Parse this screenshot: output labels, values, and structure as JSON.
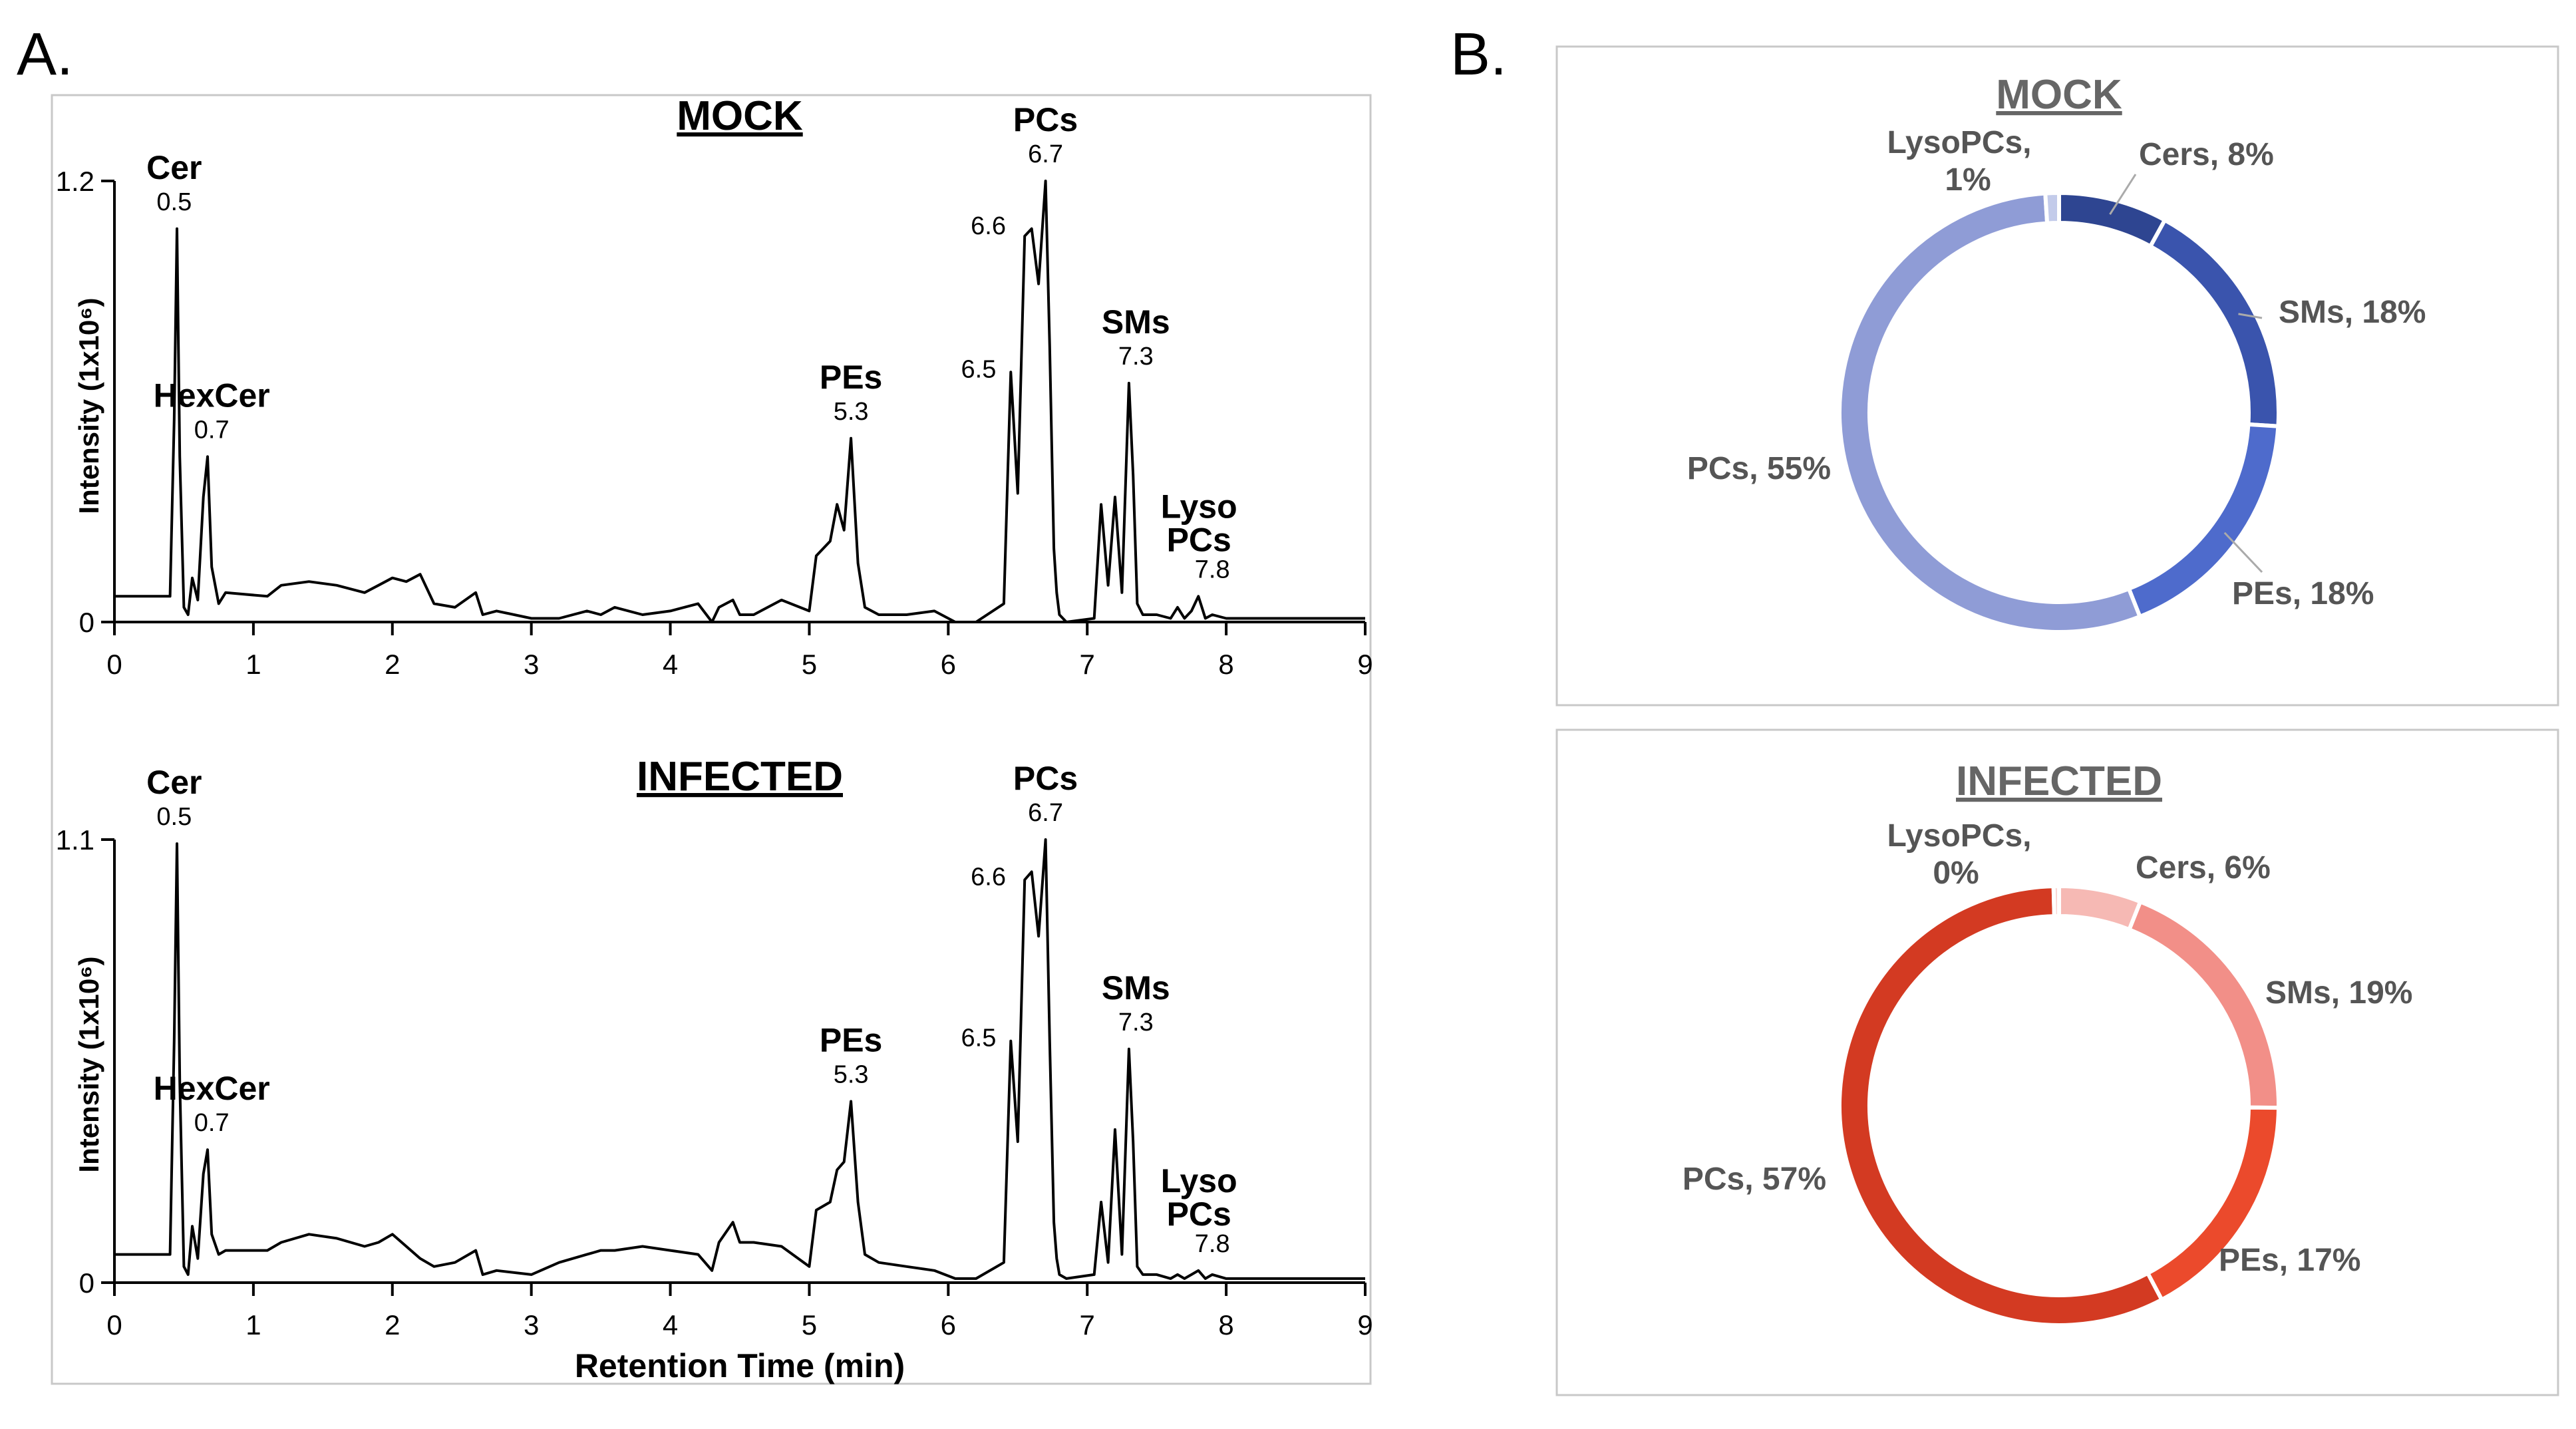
{
  "panel_labels": {
    "a": "A.",
    "b": "B."
  },
  "chart_data": [
    {
      "id": "mock-chromatogram",
      "type": "line",
      "title": "MOCK",
      "xlabel": "",
      "ylabel": "Intensity (1x10⁶)",
      "xlim": [
        0,
        9
      ],
      "ylim": [
        0,
        1.2
      ],
      "xticks": [
        "0",
        "1",
        "2",
        "3",
        "4",
        "5",
        "6",
        "7",
        "8",
        "9"
      ],
      "yticks": [
        {
          "value": 0,
          "label": "0"
        },
        {
          "value": 1.2,
          "label": "1.2"
        }
      ],
      "x": [
        0,
        0.4,
        0.43,
        0.45,
        0.47,
        0.5,
        0.53,
        0.56,
        0.6,
        0.64,
        0.67,
        0.7,
        0.75,
        0.8,
        1.1,
        1.2,
        1.4,
        1.6,
        1.8,
        1.9,
        2.0,
        2.1,
        2.2,
        2.3,
        2.45,
        2.6,
        2.65,
        2.75,
        3.0,
        3.2,
        3.4,
        3.5,
        3.6,
        3.8,
        4.0,
        4.2,
        4.3,
        4.35,
        4.45,
        4.5,
        4.6,
        4.8,
        5.0,
        5.05,
        5.15,
        5.2,
        5.25,
        5.3,
        5.35,
        5.4,
        5.5,
        5.7,
        5.9,
        6.05,
        6.2,
        6.4,
        6.45,
        6.5,
        6.55,
        6.6,
        6.65,
        6.7,
        6.73,
        6.76,
        6.78,
        6.8,
        6.85,
        7.05,
        7.1,
        7.15,
        7.2,
        7.25,
        7.3,
        7.33,
        7.36,
        7.4,
        7.5,
        7.6,
        7.65,
        7.7,
        7.75,
        7.8,
        7.85,
        7.9,
        8.0,
        8.5,
        9.0
      ],
      "y": [
        0.07,
        0.07,
        0.55,
        1.07,
        0.45,
        0.04,
        0.02,
        0.12,
        0.06,
        0.34,
        0.45,
        0.15,
        0.05,
        0.08,
        0.07,
        0.1,
        0.11,
        0.1,
        0.08,
        0.1,
        0.12,
        0.11,
        0.13,
        0.05,
        0.04,
        0.08,
        0.02,
        0.03,
        0.01,
        0.01,
        0.03,
        0.02,
        0.04,
        0.02,
        0.03,
        0.05,
        0.0,
        0.04,
        0.06,
        0.02,
        0.02,
        0.06,
        0.03,
        0.18,
        0.22,
        0.32,
        0.25,
        0.5,
        0.16,
        0.04,
        0.02,
        0.02,
        0.03,
        0.0,
        0.0,
        0.05,
        0.68,
        0.35,
        1.05,
        1.07,
        0.92,
        1.2,
        0.75,
        0.2,
        0.08,
        0.02,
        0.0,
        0.01,
        0.32,
        0.1,
        0.34,
        0.08,
        0.65,
        0.4,
        0.05,
        0.02,
        0.02,
        0.01,
        0.04,
        0.01,
        0.03,
        0.07,
        0.01,
        0.02,
        0.01,
        0.01,
        0.01
      ],
      "peaks": [
        {
          "name": "Cer",
          "rt": "0.5",
          "x": 0.43,
          "y": 1.07,
          "name2": ""
        },
        {
          "name": "HexCer",
          "rt": "0.7",
          "x": 0.7,
          "y": 0.45,
          "name2": ""
        },
        {
          "name": "PEs",
          "rt": "5.3",
          "x": 5.3,
          "y": 0.5,
          "name2": ""
        },
        {
          "name": "",
          "rt": "6.5",
          "x": 6.45,
          "y": 0.68,
          "name2": ""
        },
        {
          "name": "",
          "rt": "6.6",
          "x": 6.52,
          "y": 1.07,
          "name2": ""
        },
        {
          "name": "PCs",
          "rt": "6.7",
          "x": 6.7,
          "y": 1.2,
          "name2": ""
        },
        {
          "name": "SMs",
          "rt": "7.3",
          "x": 7.35,
          "y": 0.65,
          "name2": ""
        },
        {
          "name": "Lyso",
          "rt": "7.8",
          "x": 7.9,
          "y": 0.07,
          "name2": "PCs"
        }
      ]
    },
    {
      "id": "infected-chromatogram",
      "type": "line",
      "title": "INFECTED",
      "xlabel": "Retention Time (min)",
      "ylabel": "Intensity (1x10⁶)",
      "xlim": [
        0,
        9
      ],
      "ylim": [
        0,
        1.1
      ],
      "xticks": [
        "0",
        "1",
        "2",
        "3",
        "4",
        "5",
        "6",
        "7",
        "8",
        "9"
      ],
      "yticks": [
        {
          "value": 0,
          "label": "0"
        },
        {
          "value": 1.1,
          "label": "1.1"
        }
      ],
      "x": [
        0,
        0.4,
        0.43,
        0.45,
        0.47,
        0.5,
        0.53,
        0.56,
        0.6,
        0.64,
        0.67,
        0.7,
        0.75,
        0.8,
        1.1,
        1.2,
        1.4,
        1.6,
        1.8,
        1.9,
        2.0,
        2.1,
        2.2,
        2.3,
        2.45,
        2.6,
        2.65,
        2.75,
        3.0,
        3.2,
        3.4,
        3.5,
        3.6,
        3.8,
        4.0,
        4.2,
        4.3,
        4.35,
        4.45,
        4.5,
        4.6,
        4.8,
        5.0,
        5.05,
        5.15,
        5.2,
        5.25,
        5.3,
        5.35,
        5.4,
        5.5,
        5.7,
        5.9,
        6.05,
        6.2,
        6.4,
        6.45,
        6.5,
        6.55,
        6.6,
        6.65,
        6.7,
        6.73,
        6.76,
        6.78,
        6.8,
        6.85,
        7.05,
        7.1,
        7.15,
        7.2,
        7.25,
        7.3,
        7.33,
        7.36,
        7.4,
        7.5,
        7.6,
        7.65,
        7.7,
        7.75,
        7.8,
        7.85,
        7.9,
        8.0,
        8.5,
        9.0
      ],
      "y": [
        0.07,
        0.07,
        0.6,
        1.09,
        0.5,
        0.04,
        0.02,
        0.14,
        0.06,
        0.27,
        0.33,
        0.12,
        0.07,
        0.08,
        0.08,
        0.1,
        0.12,
        0.11,
        0.09,
        0.1,
        0.12,
        0.09,
        0.06,
        0.04,
        0.05,
        0.08,
        0.02,
        0.03,
        0.02,
        0.05,
        0.07,
        0.08,
        0.08,
        0.09,
        0.08,
        0.07,
        0.03,
        0.1,
        0.15,
        0.1,
        0.1,
        0.09,
        0.04,
        0.18,
        0.2,
        0.28,
        0.3,
        0.45,
        0.2,
        0.07,
        0.05,
        0.04,
        0.03,
        0.01,
        0.01,
        0.05,
        0.6,
        0.35,
        1.0,
        1.02,
        0.86,
        1.1,
        0.6,
        0.15,
        0.06,
        0.02,
        0.01,
        0.02,
        0.2,
        0.05,
        0.38,
        0.07,
        0.58,
        0.35,
        0.04,
        0.02,
        0.02,
        0.01,
        0.02,
        0.01,
        0.02,
        0.03,
        0.01,
        0.02,
        0.01,
        0.01,
        0.01
      ],
      "peaks": [
        {
          "name": "Cer",
          "rt": "0.5",
          "x": 0.43,
          "y": 1.09,
          "name2": ""
        },
        {
          "name": "HexCer",
          "rt": "0.7",
          "x": 0.7,
          "y": 0.33,
          "name2": ""
        },
        {
          "name": "PEs",
          "rt": "5.3",
          "x": 5.3,
          "y": 0.45,
          "name2": ""
        },
        {
          "name": "",
          "rt": "6.5",
          "x": 6.45,
          "y": 0.6,
          "name2": ""
        },
        {
          "name": "",
          "rt": "6.6",
          "x": 6.52,
          "y": 1.0,
          "name2": ""
        },
        {
          "name": "PCs",
          "rt": "6.7",
          "x": 6.7,
          "y": 1.1,
          "name2": ""
        },
        {
          "name": "SMs",
          "rt": "7.3",
          "x": 7.35,
          "y": 0.58,
          "name2": ""
        },
        {
          "name": "Lyso",
          "rt": "7.8",
          "x": 7.9,
          "y": 0.03,
          "name2": "PCs"
        }
      ]
    },
    {
      "id": "mock-donut",
      "type": "pie",
      "title": "MOCK",
      "slices": [
        {
          "label": "Cers, 8%",
          "value": 8,
          "color": "#2e4591"
        },
        {
          "label": "SMs, 18%",
          "value": 18,
          "color": "#3a54ad"
        },
        {
          "label": "PEs, 18%",
          "value": 18,
          "color": "#4e6bcc"
        },
        {
          "label": "PCs, 55%",
          "value": 55,
          "color": "#8f9cd6"
        },
        {
          "label": "LysoPCs,",
          "label2": "1%",
          "value": 1,
          "color": "#c3cbea"
        }
      ]
    },
    {
      "id": "infected-donut",
      "type": "pie",
      "title": "INFECTED",
      "slices": [
        {
          "label": "Cers, 6%",
          "value": 6,
          "color": "#f6b9b4"
        },
        {
          "label": "SMs, 19%",
          "value": 19,
          "color": "#f28f88"
        },
        {
          "label": "PEs, 17%",
          "value": 17,
          "color": "#eb4a2c"
        },
        {
          "label": "PCs, 57%",
          "value": 57,
          "color": "#d33a22"
        },
        {
          "label": "LysoPCs,",
          "label2": "0%",
          "value": 0.4,
          "color": "#f8d6d3"
        }
      ]
    }
  ]
}
